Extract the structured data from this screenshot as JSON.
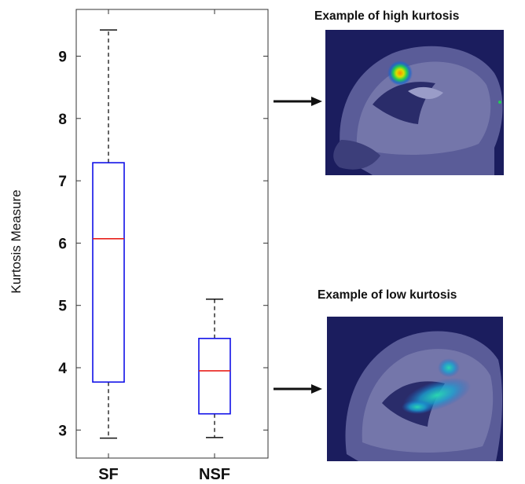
{
  "chart_data": {
    "type": "box",
    "ylabel": "Kurtosis Measure",
    "xlabel": "",
    "ylim": [
      2.55,
      9.75
    ],
    "yticks": [
      3,
      4,
      5,
      6,
      7,
      8,
      9
    ],
    "categories": [
      "SF",
      "NSF"
    ],
    "boxes": [
      {
        "category": "SF",
        "min": 2.87,
        "q1": 3.77,
        "median": 6.07,
        "q3": 7.29,
        "max": 9.42
      },
      {
        "category": "NSF",
        "min": 2.88,
        "q1": 3.26,
        "median": 3.95,
        "q3": 4.47,
        "max": 5.1
      }
    ],
    "colors": {
      "box": "#1010e8",
      "median": "#e8201c",
      "whisker": "#111111"
    }
  },
  "examples": {
    "high_title": "Example of high kurtosis",
    "low_title": "Example of low kurtosis"
  }
}
